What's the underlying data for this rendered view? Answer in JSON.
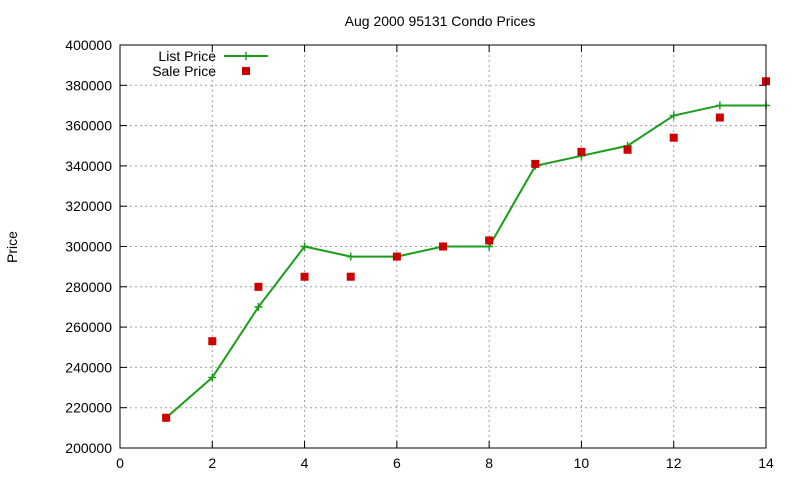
{
  "chart_data": {
    "type": "line",
    "title": "Aug 2000 95131 Condo Prices",
    "xlabel": "",
    "ylabel": "Price",
    "xlim": [
      0,
      14
    ],
    "ylim": [
      200000,
      400000
    ],
    "x_ticks": [
      "0",
      "2",
      "4",
      "6",
      "8",
      "10",
      "12",
      "14"
    ],
    "y_ticks": [
      "200000",
      "220000",
      "240000",
      "260000",
      "280000",
      "300000",
      "320000",
      "340000",
      "360000",
      "380000",
      "400000"
    ],
    "grid": true,
    "legend_position": "top-left",
    "series": [
      {
        "name": "List Price",
        "style": "line-with-plus-markers",
        "color": "#1a9e1a",
        "x": [
          1,
          2,
          3,
          4,
          5,
          6,
          7,
          8,
          9,
          10,
          11,
          12,
          13,
          14
        ],
        "y": [
          215000,
          235000,
          270000,
          300000,
          295000,
          295000,
          300000,
          300000,
          340000,
          345000,
          350000,
          365000,
          370000,
          370000
        ]
      },
      {
        "name": "Sale Price",
        "style": "square-markers",
        "color": "#cc0000",
        "x": [
          1,
          2,
          3,
          4,
          5,
          6,
          7,
          8,
          9,
          10,
          11,
          12,
          13,
          14
        ],
        "y": [
          215000,
          253000,
          280000,
          285000,
          285000,
          295000,
          300000,
          303000,
          341000,
          347000,
          348000,
          354000,
          364000,
          382000
        ]
      }
    ]
  }
}
